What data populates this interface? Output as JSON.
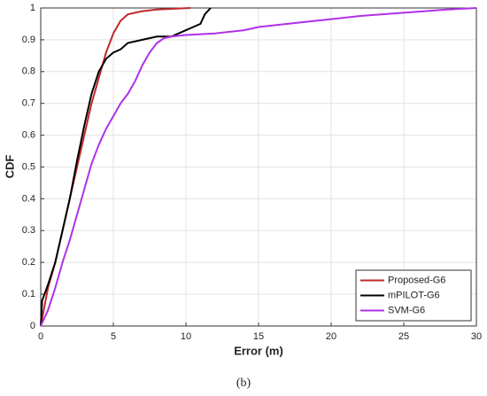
{
  "chart_data": {
    "type": "line",
    "xlabel": "Error (m)",
    "ylabel": "CDF",
    "caption": "(b)",
    "xlim": [
      0,
      30
    ],
    "xticks": [
      0,
      5,
      10,
      15,
      20,
      25,
      30
    ],
    "ylim": [
      0,
      1
    ],
    "yticks": [
      0,
      0.1,
      0.2,
      0.3,
      0.4,
      0.5,
      0.6,
      0.7,
      0.8,
      0.9,
      1
    ],
    "grid": true,
    "legend": "lower right",
    "series": [
      {
        "name": "Proposed-G6",
        "color": "#c0282a",
        "x": [
          0,
          0.5,
          1,
          1.5,
          2,
          2.5,
          3,
          3.5,
          4,
          4.5,
          5,
          5.5,
          6,
          7,
          8,
          10.3
        ],
        "values": [
          0,
          0.12,
          0.2,
          0.3,
          0.4,
          0.5,
          0.6,
          0.7,
          0.78,
          0.86,
          0.92,
          0.96,
          0.98,
          0.99,
          0.995,
          1
        ]
      },
      {
        "name": "mPILOT-G6",
        "color": "#000000",
        "x": [
          0,
          0.1,
          0.5,
          1,
          1.5,
          2,
          2.5,
          3,
          3.5,
          4,
          4.5,
          5,
          5.5,
          6,
          7,
          8,
          9,
          10,
          10.5,
          11,
          11.3,
          11.7
        ],
        "values": [
          0,
          0.08,
          0.13,
          0.2,
          0.3,
          0.4,
          0.52,
          0.63,
          0.73,
          0.8,
          0.84,
          0.86,
          0.87,
          0.89,
          0.9,
          0.91,
          0.91,
          0.93,
          0.94,
          0.95,
          0.98,
          1
        ]
      },
      {
        "name": "SVM-G6",
        "color": "#b030e8",
        "x": [
          0,
          0.5,
          1,
          1.5,
          2,
          2.5,
          3,
          3.5,
          4,
          4.5,
          5,
          5.5,
          6,
          6.5,
          7,
          7.5,
          8,
          8.5,
          9,
          10,
          12,
          14,
          15,
          17,
          20,
          22,
          25,
          28,
          30
        ],
        "values": [
          0,
          0.05,
          0.12,
          0.2,
          0.27,
          0.35,
          0.43,
          0.51,
          0.57,
          0.62,
          0.66,
          0.7,
          0.73,
          0.77,
          0.82,
          0.86,
          0.89,
          0.905,
          0.91,
          0.915,
          0.92,
          0.93,
          0.94,
          0.95,
          0.965,
          0.975,
          0.985,
          0.995,
          1
        ]
      }
    ]
  }
}
